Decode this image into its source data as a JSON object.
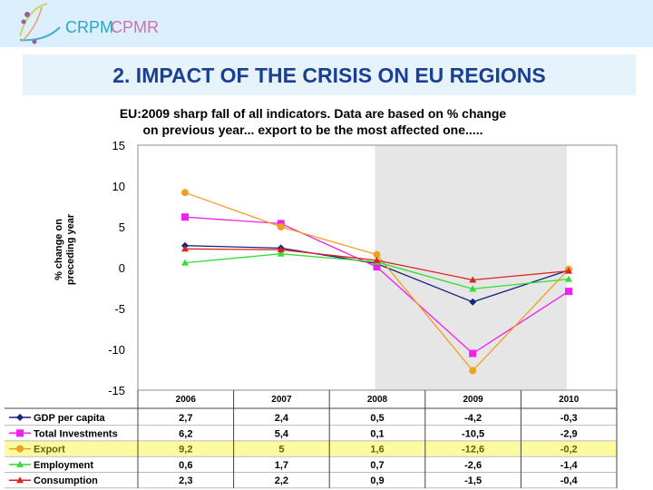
{
  "header": {
    "brand_fr": "CRPM",
    "brand_en": "CPMR"
  },
  "slide_title": "2. IMPACT OF THE CRISIS ON EU REGIONS",
  "chart_data": {
    "type": "line",
    "title": [
      "EU:2009 sharp fall of all indicators. Data are based on % change",
      "on previous year... export to be the most affected one....."
    ],
    "ylabel": [
      "% change on",
      "preceding year"
    ],
    "ylim": [
      -15,
      15
    ],
    "yticks": [
      15,
      10,
      5,
      0,
      -5,
      -10,
      -15
    ],
    "categories": [
      "2006",
      "2007",
      "2008",
      "2009",
      "2010"
    ],
    "shaded_categories": [
      "2008",
      "2009"
    ],
    "grid": false,
    "legend": "table-below",
    "highlighted_series": "Export",
    "series": [
      {
        "name": "GDP per capita",
        "color": "#1a237e",
        "marker": "diamond",
        "values": [
          2.7,
          2.4,
          0.5,
          -4.2,
          -0.3
        ],
        "labels": [
          "2,7",
          "2,4",
          "0,5",
          "-4,2",
          "-0,3"
        ]
      },
      {
        "name": "Total Investments",
        "color": "#ee22ee",
        "marker": "square",
        "values": [
          6.2,
          5.4,
          0.1,
          -10.5,
          -2.9
        ],
        "labels": [
          "6,2",
          "5,4",
          "0,1",
          "-10,5",
          "-2,9"
        ]
      },
      {
        "name": "Export",
        "color": "#f0a020",
        "marker": "circle",
        "values": [
          9.2,
          5,
          1.6,
          -12.6,
          -0.2
        ],
        "labels": [
          "9,2",
          "5",
          "1,6",
          "-12,6",
          "-0,2"
        ]
      },
      {
        "name": "Employment",
        "color": "#33dd33",
        "marker": "triangle",
        "values": [
          0.6,
          1.7,
          0.7,
          -2.6,
          -1.4
        ],
        "labels": [
          "0,6",
          "1,7",
          "0,7",
          "-2,6",
          "-1,4"
        ]
      },
      {
        "name": "Consumption",
        "color": "#dd2222",
        "marker": "triangle",
        "values": [
          2.3,
          2.2,
          0.9,
          -1.5,
          -0.4
        ],
        "labels": [
          "2,3",
          "2,2",
          "0,9",
          "-1,5",
          "-0,4"
        ]
      }
    ]
  }
}
